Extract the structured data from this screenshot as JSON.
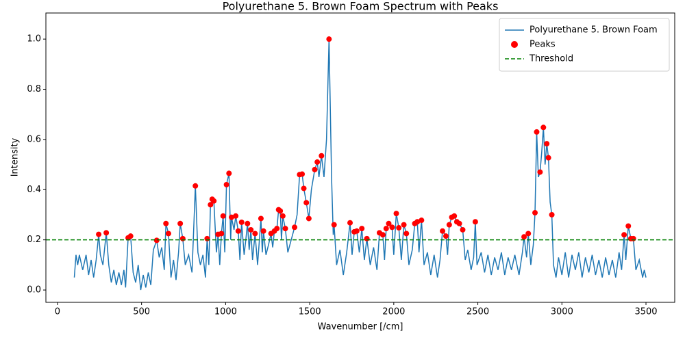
{
  "chart_data": {
    "type": "line",
    "title": "Polyurethane 5. Brown Foam Spectrum with Peaks",
    "x_label": "Wavenumber [/cm]",
    "y_label": "Intensity",
    "xlim": [
      -69,
      3671
    ],
    "ylim": [
      -0.049,
      1.104
    ],
    "xticks": [
      0,
      500,
      1000,
      1500,
      2000,
      2500,
      3000,
      3500
    ],
    "yticks": [
      {
        "value": 0,
        "label": "0.0"
      },
      {
        "value": 0.2,
        "label": "0.2"
      },
      {
        "value": 0.4,
        "label": "0.4"
      },
      {
        "value": 0.6,
        "label": "0.6"
      },
      {
        "value": 0.8,
        "label": "0.8"
      },
      {
        "value": 1,
        "label": "1.0"
      }
    ],
    "legend": "upper right",
    "series": [
      {
        "name": "Polyurethane 5. Brown Foam",
        "type": "line",
        "color": "#1f77b4",
        "x": [
          100,
          110,
          120,
          130,
          150,
          170,
          185,
          200,
          215,
          230,
          245,
          255,
          270,
          290,
          305,
          320,
          335,
          350,
          365,
          380,
          395,
          405,
          420,
          435,
          450,
          465,
          480,
          495,
          510,
          525,
          540,
          555,
          570,
          590,
          605,
          620,
          635,
          645,
          660,
          675,
          690,
          705,
          720,
          730,
          745,
          760,
          780,
          800,
          820,
          835,
          850,
          865,
          880,
          890,
          900,
          910,
          920,
          930,
          945,
          955,
          965,
          975,
          985,
          995,
          1005,
          1020,
          1030,
          1035,
          1050,
          1060,
          1075,
          1085,
          1095,
          1110,
          1120,
          1130,
          1140,
          1150,
          1160,
          1175,
          1190,
          1210,
          1218,
          1225,
          1240,
          1255,
          1270,
          1280,
          1290,
          1305,
          1315,
          1325,
          1332,
          1340,
          1355,
          1370,
          1390,
          1410,
          1425,
          1440,
          1455,
          1465,
          1480,
          1495,
          1510,
          1530,
          1545,
          1555,
          1570,
          1585,
          1600,
          1615,
          1630,
          1640,
          1645,
          1660,
          1680,
          1700,
          1720,
          1740,
          1752,
          1765,
          1780,
          1795,
          1810,
          1825,
          1840,
          1860,
          1880,
          1900,
          1915,
          1935,
          1945,
          1955,
          1970,
          1990,
          2000,
          2015,
          2030,
          2045,
          2060,
          2075,
          2090,
          2110,
          2125,
          2140,
          2150,
          2165,
          2180,
          2200,
          2220,
          2240,
          2260,
          2275,
          2290,
          2310,
          2320,
          2330,
          2345,
          2360,
          2375,
          2390,
          2410,
          2425,
          2440,
          2460,
          2475,
          2485,
          2495,
          2520,
          2540,
          2560,
          2580,
          2600,
          2620,
          2640,
          2660,
          2680,
          2700,
          2720,
          2745,
          2765,
          2775,
          2790,
          2800,
          2815,
          2830,
          2840,
          2850,
          2860,
          2870,
          2880,
          2890,
          2900,
          2910,
          2920,
          2930,
          2940,
          2950,
          2965,
          2980,
          3000,
          3020,
          3040,
          3060,
          3080,
          3100,
          3120,
          3140,
          3160,
          3180,
          3200,
          3220,
          3240,
          3260,
          3280,
          3300,
          3320,
          3340,
          3355,
          3370,
          3380,
          3395,
          3410,
          3425,
          3440,
          3460,
          3480,
          3490,
          3500
        ],
        "values": [
          0.05,
          0.14,
          0.1,
          0.14,
          0.08,
          0.14,
          0.06,
          0.12,
          0.05,
          0.12,
          0.222,
          0.14,
          0.1,
          0.228,
          0.1,
          0.03,
          0.08,
          0.02,
          0.07,
          0.02,
          0.08,
          0.01,
          0.208,
          0.215,
          0.07,
          0.03,
          0.1,
          0.0,
          0.06,
          0.01,
          0.07,
          0.02,
          0.16,
          0.198,
          0.13,
          0.17,
          0.08,
          0.265,
          0.225,
          0.05,
          0.12,
          0.04,
          0.15,
          0.265,
          0.205,
          0.1,
          0.14,
          0.07,
          0.415,
          0.15,
          0.1,
          0.14,
          0.05,
          0.205,
          0.1,
          0.34,
          0.362,
          0.355,
          0.15,
          0.222,
          0.1,
          0.225,
          0.295,
          0.15,
          0.42,
          0.465,
          0.2,
          0.29,
          0.24,
          0.295,
          0.235,
          0.12,
          0.27,
          0.14,
          0.2,
          0.265,
          0.16,
          0.24,
          0.12,
          0.225,
          0.1,
          0.285,
          0.15,
          0.235,
          0.14,
          0.18,
          0.225,
          0.17,
          0.235,
          0.245,
          0.32,
          0.315,
          0.2,
          0.295,
          0.245,
          0.15,
          0.2,
          0.25,
          0.3,
          0.46,
          0.462,
          0.405,
          0.348,
          0.285,
          0.4,
          0.48,
          0.51,
          0.45,
          0.535,
          0.45,
          0.6,
          1.0,
          0.45,
          0.22,
          0.26,
          0.1,
          0.16,
          0.06,
          0.15,
          0.268,
          0.14,
          0.232,
          0.235,
          0.15,
          0.245,
          0.12,
          0.205,
          0.1,
          0.17,
          0.08,
          0.228,
          0.22,
          0.12,
          0.245,
          0.265,
          0.25,
          0.14,
          0.305,
          0.248,
          0.12,
          0.26,
          0.225,
          0.1,
          0.16,
          0.265,
          0.272,
          0.15,
          0.278,
          0.1,
          0.15,
          0.06,
          0.14,
          0.05,
          0.12,
          0.235,
          0.215,
          0.14,
          0.26,
          0.29,
          0.295,
          0.272,
          0.265,
          0.24,
          0.12,
          0.16,
          0.08,
          0.13,
          0.272,
          0.1,
          0.15,
          0.07,
          0.14,
          0.06,
          0.13,
          0.08,
          0.15,
          0.06,
          0.13,
          0.08,
          0.14,
          0.06,
          0.15,
          0.212,
          0.13,
          0.225,
          0.1,
          0.18,
          0.308,
          0.63,
          0.45,
          0.47,
          0.55,
          0.648,
          0.5,
          0.583,
          0.527,
          0.35,
          0.3,
          0.1,
          0.05,
          0.13,
          0.06,
          0.15,
          0.05,
          0.14,
          0.08,
          0.15,
          0.05,
          0.13,
          0.07,
          0.14,
          0.06,
          0.12,
          0.05,
          0.13,
          0.06,
          0.12,
          0.05,
          0.15,
          0.08,
          0.22,
          0.12,
          0.255,
          0.205,
          0.205,
          0.08,
          0.12,
          0.05,
          0.08,
          0.05
        ]
      },
      {
        "name": "Peaks",
        "type": "scatter",
        "color": "#ff0000",
        "x": [
          245,
          290,
          420,
          435,
          590,
          645,
          660,
          730,
          745,
          820,
          890,
          910,
          920,
          930,
          955,
          975,
          985,
          1005,
          1020,
          1035,
          1060,
          1075,
          1095,
          1130,
          1150,
          1175,
          1210,
          1225,
          1270,
          1290,
          1305,
          1315,
          1325,
          1340,
          1355,
          1410,
          1440,
          1455,
          1465,
          1480,
          1495,
          1530,
          1545,
          1570,
          1615,
          1645,
          1740,
          1765,
          1780,
          1810,
          1840,
          1915,
          1935,
          1955,
          1970,
          1990,
          2015,
          2030,
          2060,
          2075,
          2125,
          2140,
          2165,
          2290,
          2310,
          2330,
          2345,
          2360,
          2375,
          2390,
          2410,
          2485,
          2775,
          2800,
          2840,
          2850,
          2870,
          2890,
          2910,
          2920,
          2940,
          3370,
          3395,
          3410,
          3425
        ],
        "values": [
          0.222,
          0.228,
          0.208,
          0.215,
          0.198,
          0.265,
          0.225,
          0.265,
          0.205,
          0.415,
          0.205,
          0.34,
          0.362,
          0.355,
          0.222,
          0.225,
          0.295,
          0.42,
          0.465,
          0.29,
          0.295,
          0.235,
          0.27,
          0.265,
          0.24,
          0.225,
          0.285,
          0.235,
          0.225,
          0.235,
          0.245,
          0.32,
          0.315,
          0.295,
          0.245,
          0.25,
          0.46,
          0.462,
          0.405,
          0.348,
          0.285,
          0.48,
          0.51,
          0.535,
          1.0,
          0.26,
          0.268,
          0.232,
          0.235,
          0.245,
          0.205,
          0.228,
          0.22,
          0.245,
          0.265,
          0.25,
          0.305,
          0.248,
          0.26,
          0.225,
          0.265,
          0.272,
          0.278,
          0.235,
          0.215,
          0.26,
          0.29,
          0.295,
          0.272,
          0.265,
          0.24,
          0.272,
          0.212,
          0.225,
          0.308,
          0.63,
          0.47,
          0.648,
          0.583,
          0.527,
          0.3,
          0.22,
          0.255,
          0.205,
          0.205
        ]
      }
    ],
    "threshold": {
      "name": "Threshold",
      "value": 0.2,
      "color": "#008000"
    }
  }
}
